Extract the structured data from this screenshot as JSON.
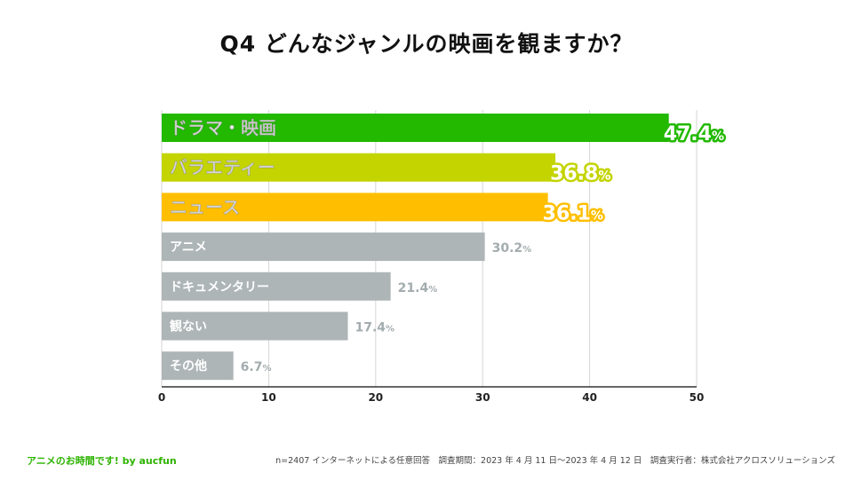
{
  "title": "Q4 どんなジャンルの映画を観ますか？",
  "footer": {
    "brand": "アニメのお時間です! by aucfun",
    "note": "n=2407 インターネットによる任意回答　調査期間：2023 年 4 月 11 日〜2023 年 4 月 12 日　調査実行者：株式会社アクロスソリューションズ"
  },
  "colors": {
    "green": "#22b900",
    "lime": "#c3d400",
    "orange": "#ffbf00",
    "gray": "#aeb5b7",
    "gray_text": "#a3acae"
  },
  "chart_data": {
    "type": "bar",
    "orientation": "horizontal",
    "title": "Q4 どんなジャンルの映画を観ますか？",
    "categories": [
      "ドラマ・映画",
      "バラエティー",
      "ニュース",
      "アニメ",
      "ドキュメンタリー",
      "観ない",
      "その他"
    ],
    "values": [
      47.4,
      36.8,
      36.1,
      30.2,
      21.4,
      17.4,
      6.7
    ],
    "value_labels": [
      "47.4",
      "36.8",
      "36.1",
      "30.2",
      "21.4",
      "17.4",
      "6.7"
    ],
    "value_suffix": "%",
    "highlight": [
      "green",
      "lime",
      "orange",
      "gray",
      "gray",
      "gray",
      "gray"
    ],
    "xlim": [
      0,
      50
    ],
    "xticks": [
      0,
      10,
      20,
      30,
      40,
      50
    ],
    "grid": true,
    "xlabel": "",
    "ylabel": ""
  }
}
